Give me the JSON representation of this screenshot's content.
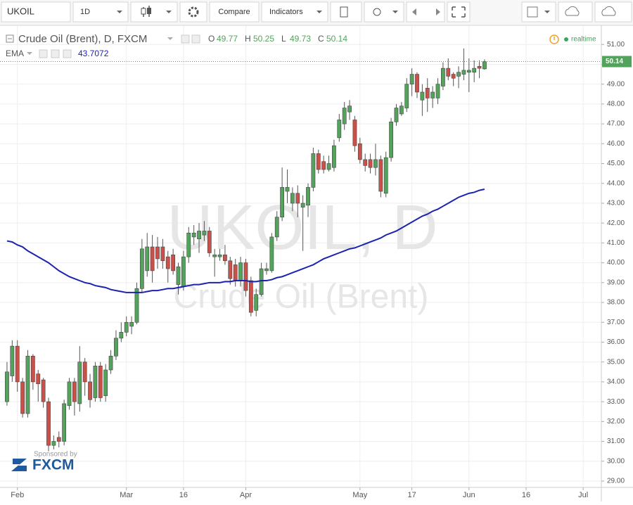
{
  "toolbar": {
    "symbol": "UKOIL",
    "interval": "1D",
    "buttons": [
      "Compare",
      "Indicators"
    ]
  },
  "chart_data": {
    "type": "candlestick",
    "title": "Crude Oil (Brent), D, FXCM",
    "ohlc_labels": [
      "O",
      "H",
      "L",
      "C"
    ],
    "status": "realtime",
    "watermark": [
      "UKOIL, D",
      "Crude Oil (Brent)"
    ],
    "sponsor": {
      "text": "Sponsored by",
      "brand": "FXCM"
    },
    "up_color": "#53a35c",
    "down_color": "#c9514a",
    "open": [
      33.0,
      34.3,
      35.8,
      34.0,
      32.4,
      35.3,
      34.4,
      34.1,
      33.0,
      30.8,
      31.2,
      31.0,
      32.8,
      34.0,
      32.9,
      35.0,
      34.0,
      33.2,
      34.8,
      33.3,
      34.6,
      35.3,
      36.2,
      36.5,
      36.8,
      37.0,
      38.7,
      39.6,
      40.8,
      40.8,
      40.8,
      40.3,
      40.4,
      38.9,
      38.8,
      40.3,
      41.3,
      41.2,
      41.4,
      41.6,
      40.3,
      40.3,
      40.4,
      40.1,
      39.9,
      39.1,
      40.0,
      39.1,
      37.6,
      38.4,
      39.6,
      39.6,
      41.3,
      42.3,
      43.6,
      43.0,
      43.5,
      42.8,
      42.9,
      43.8,
      45.5,
      45.1,
      44.7,
      44.8,
      46.3,
      47.0,
      47.6,
      47.2,
      46.0,
      45.2,
      45.2,
      44.8,
      45.2,
      43.5,
      45.3,
      47.1,
      47.5,
      47.8,
      49.0,
      49.5,
      48.2,
      48.8,
      48.3,
      48.3,
      48.9,
      49.8,
      49.5,
      49.4,
      49.5,
      49.6,
      49.6,
      49.9,
      49.77
    ],
    "high": [
      35.0,
      36.1,
      36.1,
      34.2,
      35.6,
      35.4,
      34.6,
      34.2,
      33.2,
      31.3,
      31.5,
      33.1,
      34.2,
      34.2,
      35.8,
      35.2,
      34.4,
      35.0,
      35.0,
      34.9,
      35.6,
      36.6,
      37.0,
      37.3,
      37.3,
      39.0,
      41.2,
      41.5,
      41.4,
      41.3,
      41.2,
      40.6,
      40.7,
      40.0,
      40.6,
      41.8,
      41.9,
      42.0,
      42.1,
      41.8,
      40.7,
      40.7,
      40.9,
      40.3,
      40.2,
      40.3,
      40.2,
      39.3,
      38.7,
      40.0,
      40.0,
      41.5,
      42.6,
      44.8,
      44.7,
      43.8,
      43.9,
      43.4,
      44.0,
      45.8,
      45.7,
      45.4,
      45.4,
      46.2,
      47.5,
      48.1,
      48.2,
      47.4,
      46.3,
      45.5,
      45.5,
      46.0,
      45.4,
      45.6,
      47.3,
      48.0,
      48.1,
      49.3,
      49.8,
      49.6,
      49.0,
      49.3,
      48.9,
      49.3,
      50.1,
      50.3,
      49.6,
      49.9,
      50.8,
      50.3,
      50.2,
      50.2,
      50.25
    ],
    "low": [
      32.8,
      34.0,
      33.5,
      32.2,
      32.2,
      33.6,
      33.0,
      32.7,
      30.5,
      30.6,
      30.7,
      30.8,
      32.6,
      32.3,
      32.5,
      33.3,
      32.7,
      33.0,
      33.0,
      33.0,
      34.4,
      35.1,
      36.0,
      36.3,
      36.4,
      36.9,
      38.5,
      39.3,
      39.0,
      39.7,
      39.7,
      39.0,
      39.4,
      38.4,
      38.6,
      40.0,
      40.9,
      40.5,
      41.1,
      40.3,
      39.3,
      40.1,
      39.9,
      38.9,
      38.8,
      38.8,
      38.3,
      37.3,
      37.3,
      38.3,
      39.4,
      39.5,
      41.1,
      42.1,
      43.0,
      42.6,
      42.3,
      40.6,
      42.3,
      43.6,
      44.5,
      44.5,
      44.6,
      44.6,
      46.1,
      46.7,
      47.2,
      45.6,
      45.0,
      44.6,
      44.5,
      44.4,
      43.3,
      43.3,
      45.1,
      46.9,
      47.4,
      47.6,
      48.4,
      48.3,
      47.4,
      47.6,
      47.8,
      48.0,
      48.7,
      49.2,
      48.9,
      48.8,
      49.2,
      48.6,
      49.1,
      49.3,
      49.73
    ],
    "close": [
      34.5,
      35.8,
      34.0,
      32.4,
      35.3,
      34.0,
      33.9,
      33.0,
      30.8,
      31.0,
      31.0,
      32.9,
      34.0,
      33.0,
      35.0,
      34.0,
      33.1,
      34.8,
      33.2,
      34.6,
      35.3,
      36.2,
      36.5,
      37.0,
      37.0,
      38.7,
      40.7,
      40.8,
      39.6,
      40.2,
      40.1,
      39.7,
      39.6,
      39.8,
      40.3,
      41.5,
      41.5,
      41.6,
      41.6,
      40.5,
      40.4,
      40.4,
      40.1,
      39.2,
      39.1,
      40.0,
      38.6,
      37.5,
      38.4,
      39.7,
      39.7,
      41.3,
      42.3,
      43.8,
      43.8,
      43.5,
      43.0,
      43.0,
      43.8,
      45.5,
      44.7,
      44.7,
      45.0,
      45.9,
      47.2,
      47.8,
      47.9,
      45.9,
      45.2,
      44.9,
      44.8,
      45.2,
      43.6,
      45.3,
      47.1,
      47.8,
      47.9,
      49.0,
      49.5,
      48.6,
      48.6,
      48.3,
      48.6,
      49.0,
      49.8,
      49.4,
      49.3,
      49.6,
      49.7,
      49.7,
      49.8,
      49.8,
      50.14
    ],
    "series": [
      {
        "name": "EMA",
        "color": "#1c23b0",
        "values": [
          41.1,
          41.05,
          40.9,
          40.8,
          40.6,
          40.45,
          40.3,
          40.15,
          40.0,
          39.8,
          39.6,
          39.45,
          39.3,
          39.2,
          39.1,
          39.0,
          38.95,
          38.85,
          38.8,
          38.75,
          38.65,
          38.6,
          38.55,
          38.5,
          38.5,
          38.5,
          38.5,
          38.55,
          38.6,
          38.6,
          38.65,
          38.7,
          38.7,
          38.75,
          38.8,
          38.85,
          38.9,
          38.9,
          38.95,
          39.0,
          39.0,
          39.0,
          39.05,
          39.05,
          39.1,
          39.1,
          39.1,
          39.05,
          39.05,
          39.1,
          39.1,
          39.15,
          39.25,
          39.3,
          39.4,
          39.5,
          39.6,
          39.7,
          39.8,
          39.9,
          40.05,
          40.2,
          40.3,
          40.4,
          40.5,
          40.6,
          40.7,
          40.75,
          40.85,
          40.95,
          41.05,
          41.15,
          41.25,
          41.4,
          41.5,
          41.6,
          41.75,
          41.9,
          42.05,
          42.2,
          42.35,
          42.45,
          42.6,
          42.7,
          42.85,
          43.0,
          43.15,
          43.3,
          43.4,
          43.5,
          43.55,
          43.65,
          43.7072
        ]
      }
    ],
    "xlim": [
      -1.35,
      114.5
    ],
    "xticks": [
      {
        "value": 2,
        "label": "Feb"
      },
      {
        "value": 23,
        "label": "Mar"
      },
      {
        "value": 34,
        "label": "16"
      },
      {
        "value": 46,
        "label": "Apr"
      },
      {
        "value": 68,
        "label": "May"
      },
      {
        "value": 78,
        "label": "17"
      },
      {
        "value": 89,
        "label": "Jun"
      },
      {
        "value": 100,
        "label": "16"
      },
      {
        "value": 111,
        "label": "Jul"
      }
    ],
    "ylim": [
      28.68,
      51.93
    ],
    "yticks": [
      {
        "value": 29,
        "label": "29.00"
      },
      {
        "value": 30,
        "label": "30.00"
      },
      {
        "value": 31,
        "label": "31.00"
      },
      {
        "value": 32,
        "label": "32.00"
      },
      {
        "value": 33,
        "label": "33.00"
      },
      {
        "value": 34,
        "label": "34.00"
      },
      {
        "value": 35,
        "label": "35.00"
      },
      {
        "value": 36,
        "label": "36.00"
      },
      {
        "value": 37,
        "label": "37.00"
      },
      {
        "value": 38,
        "label": "38.00"
      },
      {
        "value": 39,
        "label": "39.00"
      },
      {
        "value": 40,
        "label": "40.00"
      },
      {
        "value": 41,
        "label": "41.00"
      },
      {
        "value": 42,
        "label": "42.00"
      },
      {
        "value": 43,
        "label": "43.00"
      },
      {
        "value": 44,
        "label": "44.00"
      },
      {
        "value": 45,
        "label": "45.00"
      },
      {
        "value": 46,
        "label": "46.00"
      },
      {
        "value": 47,
        "label": "47.00"
      },
      {
        "value": 48,
        "label": "48.00"
      },
      {
        "value": 49,
        "label": "49.00"
      },
      {
        "value": 50,
        "label": "50.00"
      },
      {
        "value": 51,
        "label": "51.00"
      }
    ],
    "grid": true
  }
}
